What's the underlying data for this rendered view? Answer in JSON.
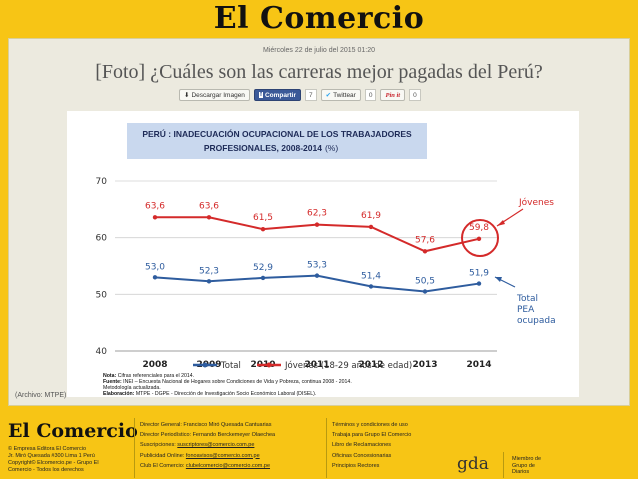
{
  "masthead": {
    "logo": "El Comercio"
  },
  "article": {
    "date": "Miércoles 22 de julio del 2015 01:20",
    "headline": "[Foto] ¿Cuáles son las carreras mejor pagadas del Perú?",
    "caption": "(Archivo: MTPE)"
  },
  "share": {
    "download_label": "Descargar Imagen",
    "facebook_label": "Compartir",
    "facebook_count": "7",
    "twitter_label": "Twittear",
    "twitter_count": "0",
    "pinterest_label": "Pin it",
    "pinterest_count": "0"
  },
  "chart_data": {
    "type": "line",
    "title": "PERÚ : INADECUACIÓN OCUPACIONAL DE LOS TRABAJADORES PROFESIONALES, 2008-2014 (%)",
    "title_line1": "PERÚ : INADECUACIÓN OCUPACIONAL DE LOS TRABAJADORES",
    "title_line2": "PROFESIONALES, 2008-2014",
    "title_unit": "(%)",
    "x": [
      "2008",
      "2009",
      "2010",
      "2011",
      "2012",
      "2013",
      "2014"
    ],
    "y_ticks": [
      "40",
      "50",
      "60",
      "70"
    ],
    "ylim": [
      40,
      70
    ],
    "grid": true,
    "series": [
      {
        "name": "Total",
        "color": "#2e5c9e",
        "values": [
          53.0,
          52.3,
          52.9,
          53.3,
          51.4,
          50.5,
          51.9
        ],
        "labels": [
          "53,0",
          "52,3",
          "52,9",
          "53,3",
          "51,4",
          "50,5",
          "51,9"
        ]
      },
      {
        "name": "Jóvenes (18-29 años de edad)",
        "color": "#d42a2a",
        "values": [
          63.6,
          63.6,
          61.5,
          62.3,
          61.9,
          57.6,
          59.8
        ],
        "labels": [
          "63,6",
          "63,6",
          "61,5",
          "62,3",
          "61,9",
          "57,6",
          "59,8"
        ]
      }
    ],
    "annotations": {
      "jovenes": "Jóvenes",
      "total_line1": "Total",
      "total_line2": "PEA",
      "total_line3": "ocupada"
    },
    "legend_placement": "bottom",
    "notes": {
      "n1_label": "Nota:",
      "n1_text": " Cifras referenciales para el 2014.",
      "n2_label": "Fuente:",
      "n2_text": " INEI – Encuesta Nacional de Hogares sobre Condiciones de Vida y Pobreza, continua 2008 - 2014.",
      "n3_text": "Metodología actualizada.",
      "n4_label": "Elaboración:",
      "n4_text": " MTPE - DGPE - Dirección de Investigación Socio Económico Laboral (DISEL)."
    }
  },
  "footer": {
    "logo": "El Comercio",
    "address": [
      "© Empresa Editora El Comercio",
      "Jr. Miró Quesada #300 Lima 1 Perú",
      "Copyright© Elcomercio.pe - Grupo El",
      "Comercio - Todos los derechos"
    ],
    "col1": [
      {
        "label": "Director General: Francisco Miró Quesada Cantuarias",
        "link": ""
      },
      {
        "label": "Director Periodístico: Fernando Berckemeyer Olaechea",
        "link": ""
      },
      {
        "label": "Suscripciones: ",
        "link": "suscriptores@comercio.com.pe"
      },
      {
        "label": "Publicidad Online: ",
        "link": "fonoavisos@comercio.com.pe"
      },
      {
        "label": "Club El Comercio: ",
        "link": "clubelcomercio@comercio.com.pe"
      }
    ],
    "col2": [
      "Términos y condiciones de uso",
      "Trabaja para Grupo El Comercio",
      "Libro de Reclamaciones",
      "Oficinas Concesionarias",
      "Principios Rectores"
    ],
    "gda_logo": "gda",
    "gda_text": [
      "Miembro de",
      "Grupo de",
      "Diarios"
    ]
  }
}
